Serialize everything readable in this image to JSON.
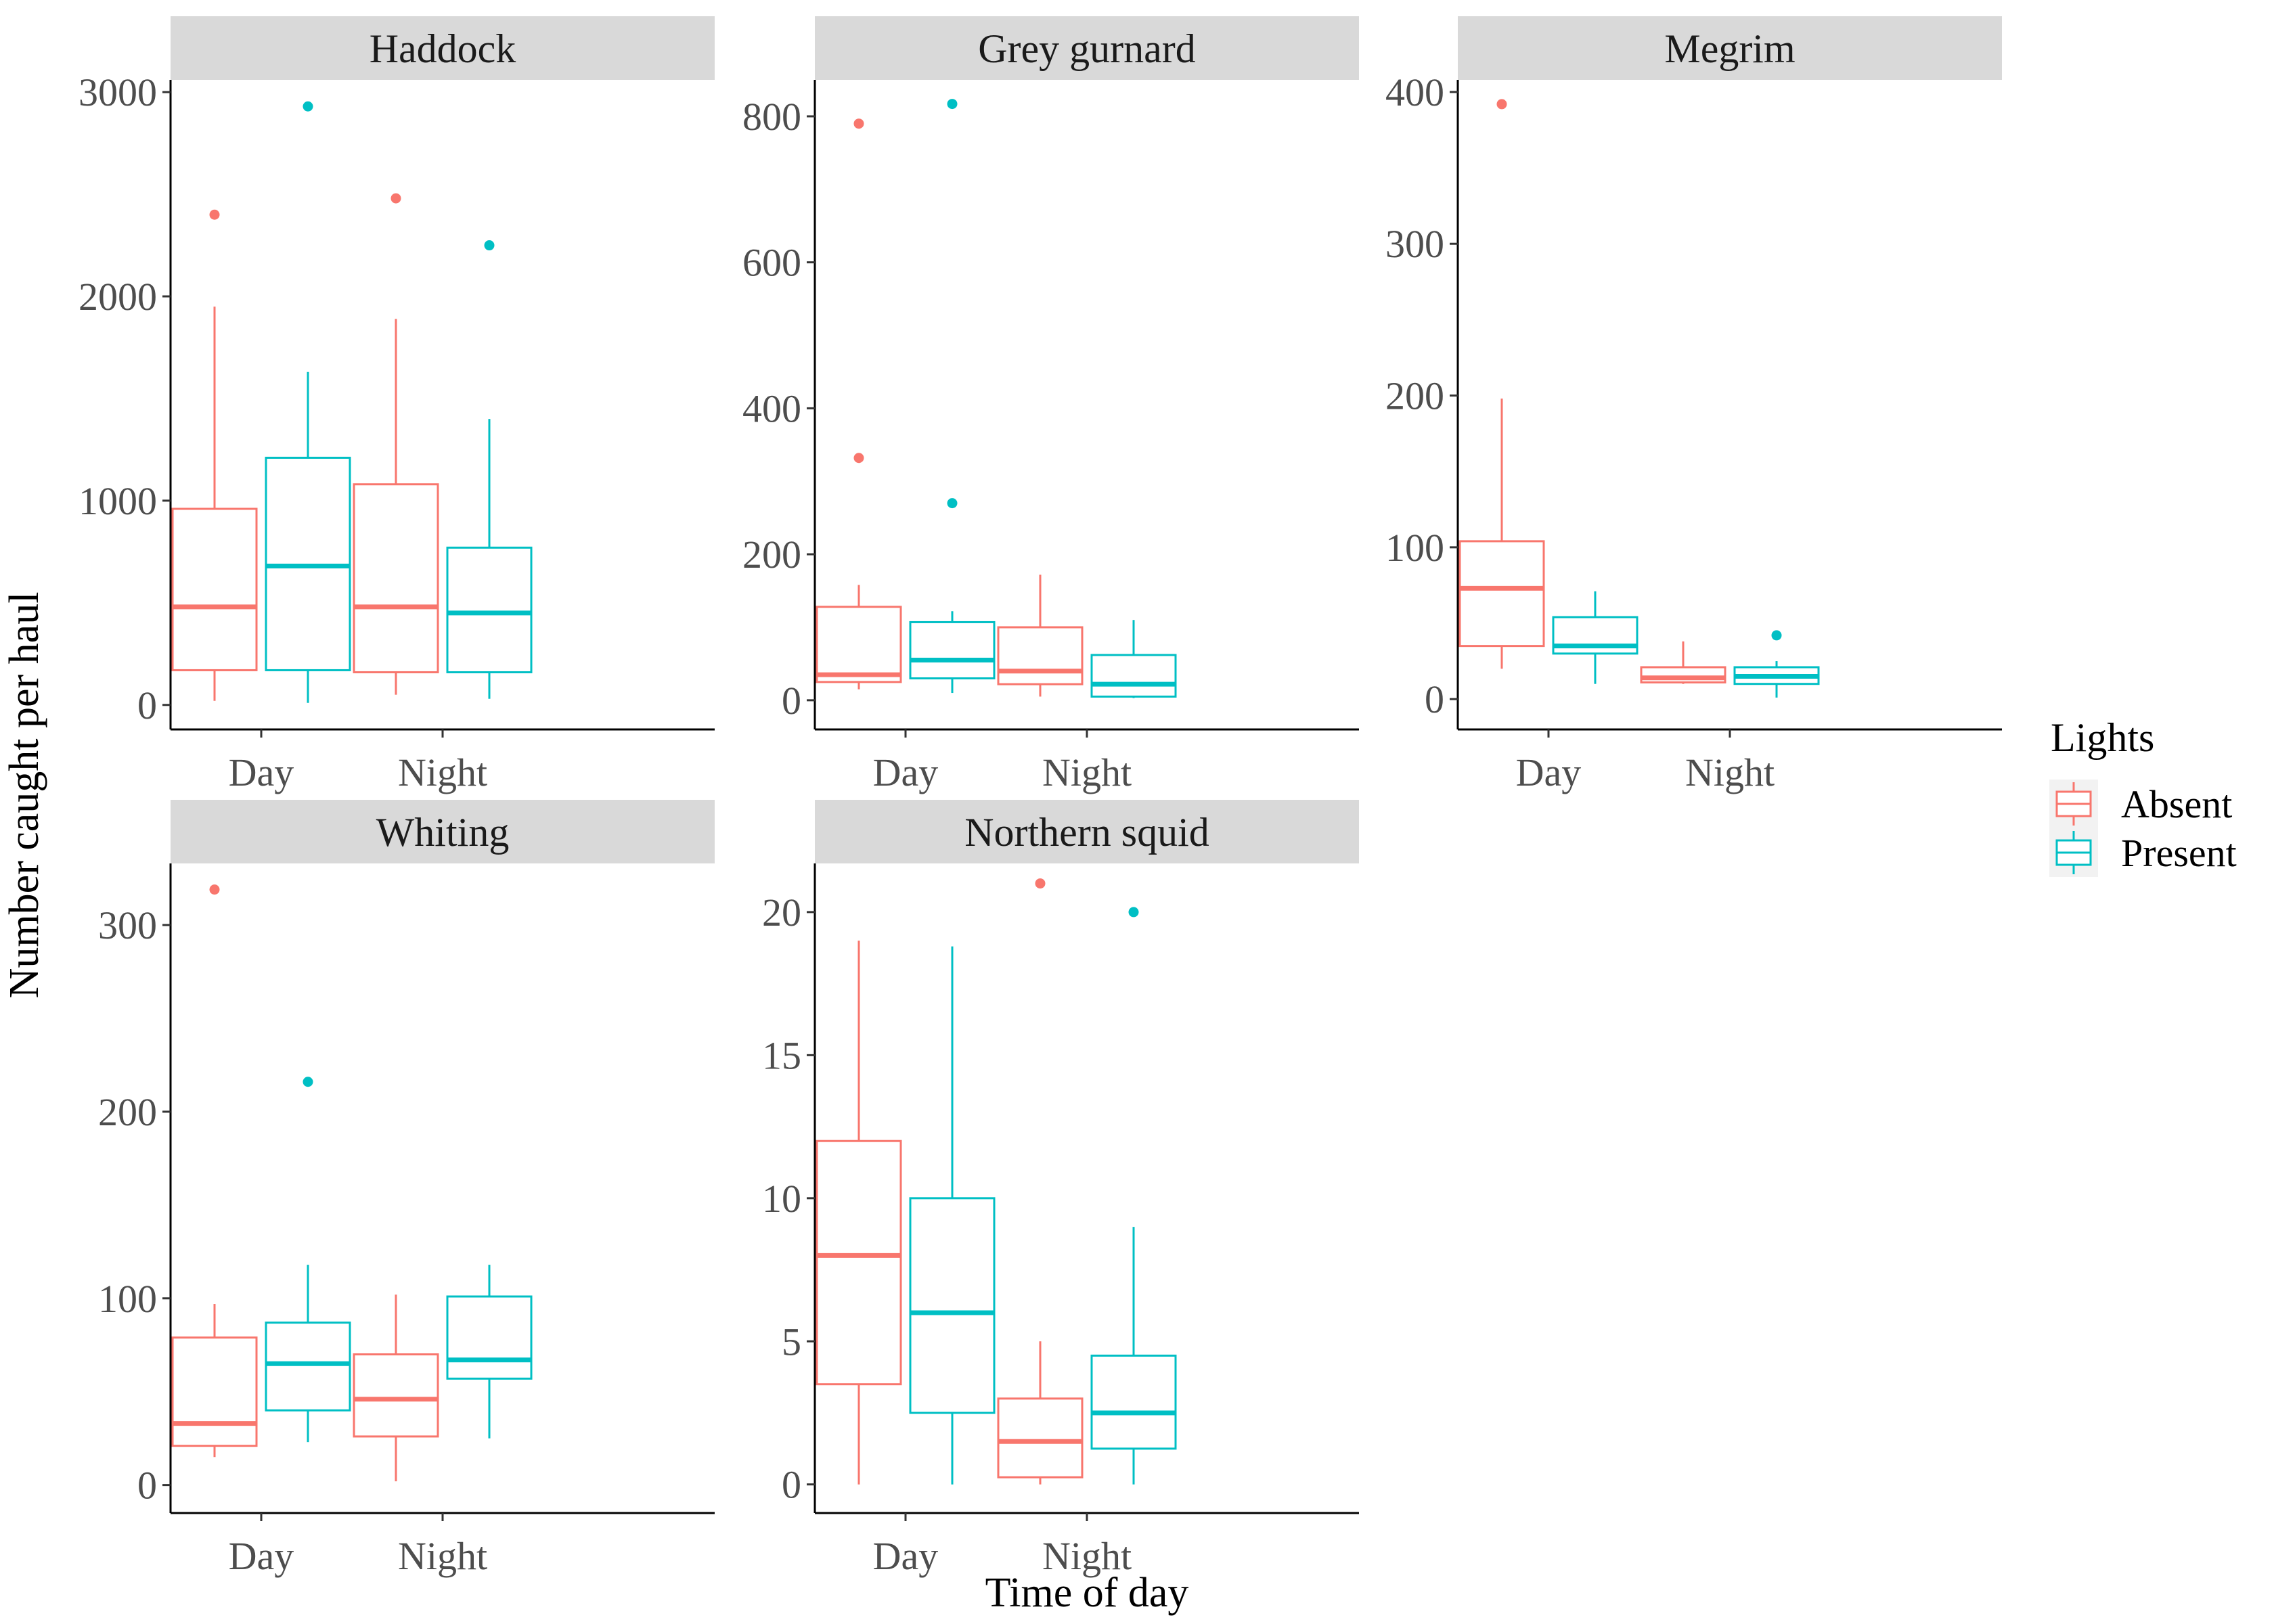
{
  "chart_data": {
    "type": "boxplot",
    "xlabel": "Time of day",
    "ylabel": "Number caught per haul",
    "categories": [
      "Day",
      "Night"
    ],
    "legend": {
      "title": "Lights",
      "placement": "right",
      "entries": [
        {
          "name": "Absent",
          "color": "#F8766D"
        },
        {
          "name": "Present",
          "color": "#00BFC4"
        }
      ]
    },
    "facets": [
      {
        "title": "Haddock",
        "ylim": [
          -120,
          3060
        ],
        "yticks": [
          0,
          1000,
          2000,
          3000
        ],
        "boxes": [
          {
            "category": "Day",
            "group": "Absent",
            "min": 20,
            "q1": 170,
            "median": 480,
            "q3": 960,
            "max": 1950,
            "outliers": [
              2400
            ]
          },
          {
            "category": "Day",
            "group": "Present",
            "min": 10,
            "q1": 170,
            "median": 680,
            "q3": 1210,
            "max": 1630,
            "outliers": [
              2930
            ]
          },
          {
            "category": "Night",
            "group": "Absent",
            "min": 50,
            "q1": 160,
            "median": 480,
            "q3": 1080,
            "max": 1890,
            "outliers": [
              2480
            ]
          },
          {
            "category": "Night",
            "group": "Present",
            "min": 30,
            "q1": 160,
            "median": 450,
            "q3": 770,
            "max": 1400,
            "outliers": [
              2250
            ]
          }
        ]
      },
      {
        "title": "Grey gurnard",
        "ylim": [
          -40,
          850
        ],
        "yticks": [
          0,
          200,
          400,
          600,
          800
        ],
        "boxes": [
          {
            "category": "Day",
            "group": "Absent",
            "min": 15,
            "q1": 25,
            "median": 35,
            "q3": 128,
            "max": 158,
            "outliers": [
              332,
              790
            ]
          },
          {
            "category": "Day",
            "group": "Present",
            "min": 10,
            "q1": 30,
            "median": 55,
            "q3": 107,
            "max": 122,
            "outliers": [
              270,
              817
            ]
          },
          {
            "category": "Night",
            "group": "Absent",
            "min": 5,
            "q1": 22,
            "median": 40,
            "q3": 100,
            "max": 172,
            "outliers": []
          },
          {
            "category": "Night",
            "group": "Present",
            "min": 3,
            "q1": 5,
            "median": 22,
            "q3": 62,
            "max": 110,
            "outliers": []
          }
        ]
      },
      {
        "title": "Megrim",
        "ylim": [
          -20,
          408
        ],
        "yticks": [
          0,
          100,
          200,
          300,
          400
        ],
        "boxes": [
          {
            "category": "Day",
            "group": "Absent",
            "min": 20,
            "q1": 35,
            "median": 73,
            "q3": 104,
            "max": 198,
            "outliers": [
              392
            ]
          },
          {
            "category": "Day",
            "group": "Present",
            "min": 10,
            "q1": 30,
            "median": 35,
            "q3": 54,
            "max": 71,
            "outliers": []
          },
          {
            "category": "Night",
            "group": "Absent",
            "min": 10,
            "q1": 11,
            "median": 14,
            "q3": 21,
            "max": 38,
            "outliers": []
          },
          {
            "category": "Night",
            "group": "Present",
            "min": 1,
            "q1": 10,
            "median": 15,
            "q3": 21,
            "max": 25,
            "outliers": [
              42
            ]
          }
        ]
      },
      {
        "title": "Whiting",
        "ylim": [
          -15,
          333
        ],
        "yticks": [
          0,
          100,
          200,
          300
        ],
        "boxes": [
          {
            "category": "Day",
            "group": "Absent",
            "min": 15,
            "q1": 21,
            "median": 33,
            "q3": 79,
            "max": 97,
            "outliers": [
              319
            ]
          },
          {
            "category": "Day",
            "group": "Present",
            "min": 23,
            "q1": 40,
            "median": 65,
            "q3": 87,
            "max": 118,
            "outliers": [
              216
            ]
          },
          {
            "category": "Night",
            "group": "Absent",
            "min": 2,
            "q1": 26,
            "median": 46,
            "q3": 70,
            "max": 102,
            "outliers": []
          },
          {
            "category": "Night",
            "group": "Present",
            "min": 25,
            "q1": 57,
            "median": 67,
            "q3": 101,
            "max": 118,
            "outliers": []
          }
        ]
      },
      {
        "title": "Northern squid",
        "ylim": [
          -1,
          21.7
        ],
        "yticks": [
          0,
          5,
          10,
          15,
          20
        ],
        "boxes": [
          {
            "category": "Day",
            "group": "Absent",
            "min": 0,
            "q1": 3.5,
            "median": 8,
            "q3": 12,
            "max": 19,
            "outliers": []
          },
          {
            "category": "Day",
            "group": "Present",
            "min": 0,
            "q1": 2.5,
            "median": 6,
            "q3": 10,
            "max": 18.8,
            "outliers": []
          },
          {
            "category": "Night",
            "group": "Absent",
            "min": 0,
            "q1": 0.25,
            "median": 1.5,
            "q3": 3,
            "max": 5,
            "outliers": [
              21
            ]
          },
          {
            "category": "Night",
            "group": "Present",
            "min": 0,
            "q1": 1.25,
            "median": 2.5,
            "q3": 4.5,
            "max": 9,
            "outliers": [
              20
            ]
          }
        ]
      }
    ]
  }
}
